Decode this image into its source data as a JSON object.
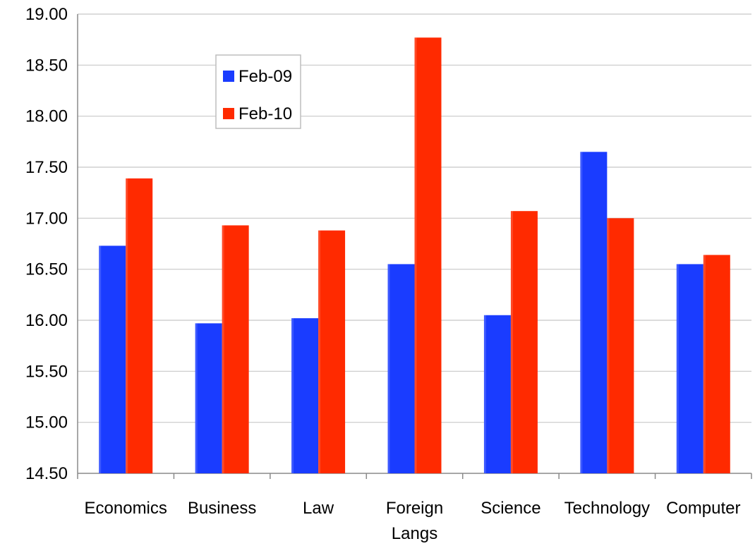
{
  "chart_data": {
    "type": "bar",
    "title": "",
    "xlabel": "",
    "ylabel": "",
    "ylim": [
      14.5,
      19.0
    ],
    "yticks": [
      "14.50",
      "15.00",
      "15.50",
      "16.00",
      "16.50",
      "17.00",
      "17.50",
      "18.00",
      "18.50",
      "19.00"
    ],
    "grid": true,
    "legend_position": "top-left",
    "categories": [
      "Economics",
      "Business",
      "Law",
      "Foreign\nLangs",
      "Science",
      "Technology",
      "Computer"
    ],
    "series": [
      {
        "name": "Feb-09",
        "color": "#1a3cff",
        "values": [
          16.73,
          15.97,
          16.02,
          16.55,
          16.05,
          17.65,
          16.55
        ]
      },
      {
        "name": "Feb-10",
        "color": "#ff2a00",
        "values": [
          17.39,
          16.93,
          16.88,
          18.77,
          17.07,
          17.0,
          16.64
        ]
      }
    ]
  }
}
